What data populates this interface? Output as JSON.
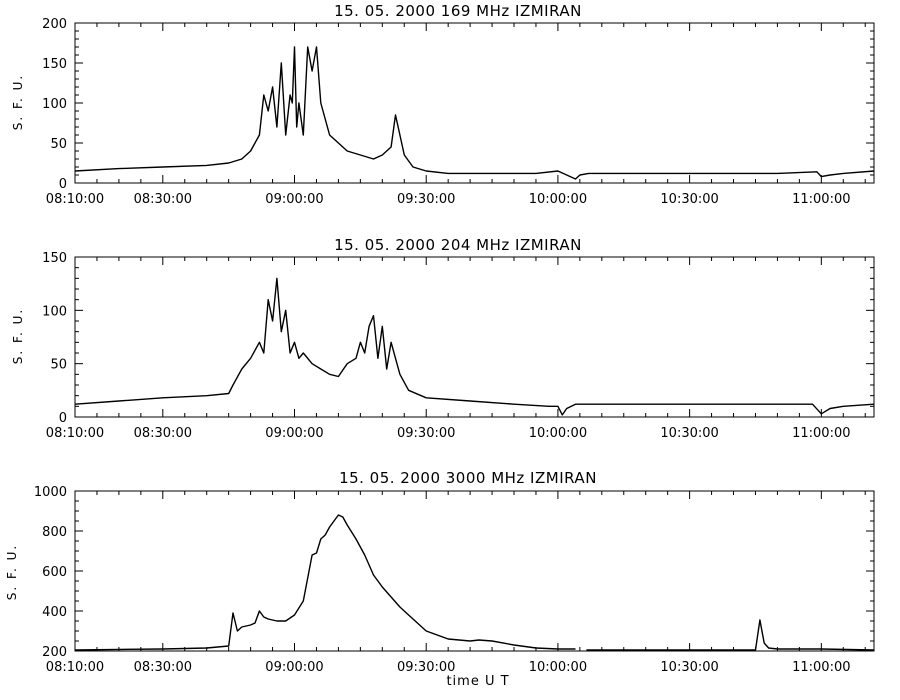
{
  "chart_data": [
    {
      "type": "line",
      "title": "15.  05.  2000    169 MHz    IZMIRAN",
      "ylabel": "S. F. U.",
      "xlabel": "",
      "xlim": [
        "08:10:00",
        "11:12:00"
      ],
      "ylim": [
        0,
        200
      ],
      "x_ticks": [
        "08:10:00",
        "08:30:00",
        "09:00:00",
        "09:30:00",
        "10:00:00",
        "10:30:00",
        "11:00:00"
      ],
      "y_ticks": [
        0,
        50,
        100,
        150,
        200
      ],
      "grid": false,
      "series": [
        {
          "color": "#000000",
          "x": [
            "08:10:00",
            "08:20:00",
            "08:30:00",
            "08:40:00",
            "08:45:00",
            "08:48:00",
            "08:50:00",
            "08:52:00",
            "08:53:00",
            "08:54:00",
            "08:55:00",
            "08:56:00",
            "08:57:00",
            "08:58:00",
            "08:59:00",
            "08:59:30",
            "09:00:00",
            "09:00:30",
            "09:01:00",
            "09:02:00",
            "09:03:00",
            "09:04:00",
            "09:05:00",
            "09:06:00",
            "09:08:00",
            "09:10:00",
            "09:12:00",
            "09:15:00",
            "09:18:00",
            "09:20:00",
            "09:22:00",
            "09:23:00",
            "09:25:00",
            "09:27:00",
            "09:30:00",
            "09:35:00",
            "09:45:00",
            "09:55:00",
            "10:00:00",
            "10:04:00",
            "10:05:00",
            "10:07:00",
            "10:10:00",
            "10:30:00",
            "10:50:00",
            "10:59:00",
            "11:00:00",
            "11:02:00",
            "11:05:00",
            "11:12:00"
          ],
          "y": [
            15,
            18,
            20,
            22,
            25,
            30,
            40,
            60,
            110,
            90,
            120,
            70,
            150,
            60,
            110,
            100,
            170,
            70,
            100,
            60,
            170,
            140,
            170,
            100,
            60,
            50,
            40,
            35,
            30,
            35,
            45,
            85,
            35,
            20,
            15,
            12,
            12,
            12,
            15,
            5,
            10,
            12,
            12,
            12,
            12,
            14,
            8,
            10,
            12,
            15
          ]
        }
      ]
    },
    {
      "type": "line",
      "title": "15.  05.  2000    204 MHz    IZMIRAN",
      "ylabel": "S. F. U.",
      "xlabel": "",
      "xlim": [
        "08:10:00",
        "11:12:00"
      ],
      "ylim": [
        0,
        150
      ],
      "x_ticks": [
        "08:10:00",
        "08:30:00",
        "09:00:00",
        "09:30:00",
        "10:00:00",
        "10:30:00",
        "11:00:00"
      ],
      "y_ticks": [
        0,
        50,
        100,
        150
      ],
      "grid": false,
      "series": [
        {
          "color": "#000000",
          "x": [
            "08:10:00",
            "08:20:00",
            "08:30:00",
            "08:40:00",
            "08:45:00",
            "08:46:00",
            "08:48:00",
            "08:50:00",
            "08:52:00",
            "08:53:00",
            "08:54:00",
            "08:55:00",
            "08:56:00",
            "08:57:00",
            "08:58:00",
            "08:59:00",
            "09:00:00",
            "09:01:00",
            "09:02:00",
            "09:04:00",
            "09:06:00",
            "09:08:00",
            "09:10:00",
            "09:12:00",
            "09:14:00",
            "09:15:00",
            "09:16:00",
            "09:17:00",
            "09:18:00",
            "09:19:00",
            "09:20:00",
            "09:21:00",
            "09:22:00",
            "09:24:00",
            "09:26:00",
            "09:30:00",
            "09:40:00",
            "09:50:00",
            "09:58:00",
            "10:00:00",
            "10:01:00",
            "10:02:00",
            "10:04:00",
            "10:10:00",
            "10:30:00",
            "10:50:00",
            "10:58:00",
            "11:00:00",
            "11:02:00",
            "11:05:00",
            "11:12:00"
          ],
          "y": [
            12,
            15,
            18,
            20,
            22,
            30,
            45,
            55,
            70,
            60,
            110,
            90,
            130,
            80,
            100,
            60,
            70,
            55,
            60,
            50,
            45,
            40,
            38,
            50,
            55,
            70,
            60,
            85,
            95,
            55,
            85,
            45,
            70,
            40,
            25,
            18,
            15,
            12,
            10,
            10,
            2,
            8,
            12,
            12,
            12,
            12,
            12,
            3,
            8,
            10,
            12
          ]
        }
      ]
    },
    {
      "type": "line",
      "title": "15.  05.  2000    3000 MHz    IZMIRAN",
      "ylabel": "S. F. U.",
      "xlabel": "time   U T",
      "xlim": [
        "08:10:00",
        "11:12:00"
      ],
      "ylim": [
        200,
        1000
      ],
      "x_ticks": [
        "08:10:00",
        "08:30:00",
        "09:00:00",
        "09:30:00",
        "10:00:00",
        "10:30:00",
        "11:00:00"
      ],
      "y_ticks": [
        200,
        400,
        600,
        800,
        1000
      ],
      "grid": false,
      "series": [
        {
          "color": "#000000",
          "x": [
            "08:10:00",
            "08:20:00",
            "08:30:00",
            "08:40:00",
            "08:45:00",
            "08:46:00",
            "08:47:00",
            "08:48:00",
            "08:50:00",
            "08:51:00",
            "08:52:00",
            "08:53:00",
            "08:54:00",
            "08:56:00",
            "08:58:00",
            "09:00:00",
            "09:02:00",
            "09:04:00",
            "09:05:00",
            "09:06:00",
            "09:07:00",
            "09:08:00",
            "09:10:00",
            "09:11:00",
            "09:12:00",
            "09:14:00",
            "09:16:00",
            "09:18:00",
            "09:20:00",
            "09:22:00",
            "09:24:00",
            "09:26:00",
            "09:28:00",
            "09:30:00",
            "09:35:00",
            "09:40:00",
            "09:42:00",
            "09:45:00",
            "09:50:00",
            "09:55:00",
            "10:00:00",
            "10:04:00",
            "10:06:00",
            "10:06:30",
            "10:10:00",
            "10:30:00",
            "10:45:00",
            "10:46:00",
            "10:47:00",
            "10:48:00",
            "10:50:00",
            "11:00:00",
            "11:12:00"
          ],
          "y": [
            205,
            208,
            210,
            215,
            225,
            390,
            300,
            320,
            330,
            340,
            400,
            370,
            360,
            350,
            350,
            380,
            450,
            680,
            690,
            760,
            780,
            820,
            880,
            870,
            830,
            760,
            680,
            580,
            520,
            470,
            420,
            380,
            340,
            300,
            260,
            250,
            255,
            250,
            230,
            215,
            210,
            210,
            null,
            205,
            205,
            205,
            205,
            355,
            240,
            215,
            210,
            210,
            205
          ]
        }
      ]
    }
  ]
}
